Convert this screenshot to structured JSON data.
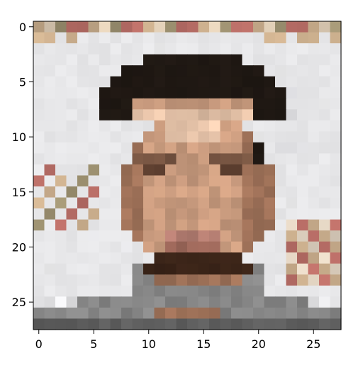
{
  "image": {
    "subject": "pixelated-face",
    "grid": [
      28,
      28
    ],
    "axes": {
      "x_ticks": [
        "0",
        "5",
        "10",
        "15",
        "20",
        "25"
      ],
      "y_ticks": [
        "0",
        "5",
        "10",
        "15",
        "20",
        "25"
      ],
      "x_tick_values": [
        0,
        5,
        10,
        15,
        20,
        25
      ],
      "y_tick_values": [
        0,
        5,
        10,
        15,
        20,
        25
      ]
    },
    "colors": {
      "background": "#e8e8ea",
      "hair": "#1f1813",
      "skin_light": "#e2c0a6",
      "skin": "#c99b7e",
      "skin_dark": "#9e7158",
      "lips": "#b77f73",
      "beard": "#3a2418",
      "shirt": "#858585",
      "shirt_dark": "#5e5e5e",
      "poster_red": "#b46b64",
      "poster_tan": "#c9ad8c",
      "poster_olive": "#9c9070"
    }
  }
}
